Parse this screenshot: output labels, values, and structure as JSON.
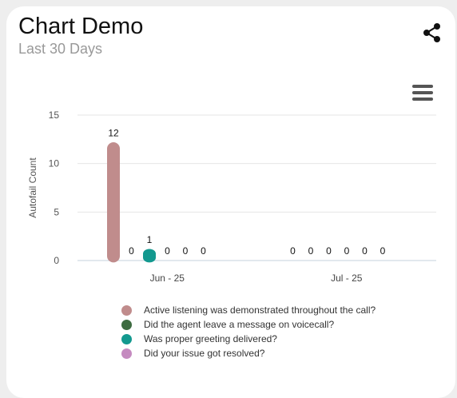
{
  "header": {
    "title": "Chart Demo",
    "subtitle": "Last 30 Days"
  },
  "icons": {
    "share": "share-icon",
    "menu": "hamburger-menu-icon"
  },
  "chart_data": {
    "type": "bar",
    "ylabel": "Autofail Count",
    "xlabel": "",
    "ylim": [
      0,
      15
    ],
    "yticks": [
      0,
      5,
      10,
      15
    ],
    "categories": [
      "Jun - 25",
      "Jul - 25"
    ],
    "grid": true,
    "legend_position": "bottom",
    "series": [
      {
        "name": "Active listening was demonstrated throughout the call?",
        "color": "#c08c8c",
        "values": [
          12,
          0
        ]
      },
      {
        "name": "Did the agent leave a message on voicecall?",
        "color": "#3d6b40",
        "values": [
          0,
          0
        ]
      },
      {
        "name": "Was proper greeting delivered?",
        "color": "#13998f",
        "values": [
          1,
          0
        ]
      },
      {
        "name": "Did your issue got resolved?",
        "color": "#c58bc0",
        "values": [
          0,
          0
        ]
      },
      {
        "name": "",
        "color": "#cccccc",
        "values": [
          0,
          0
        ]
      },
      {
        "name": "",
        "color": "#cccccc",
        "values": [
          0,
          0
        ]
      }
    ]
  }
}
